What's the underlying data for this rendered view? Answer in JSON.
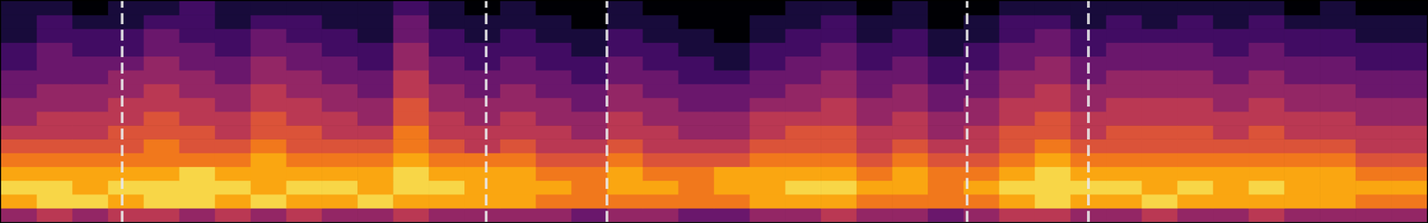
{
  "chart_data": {
    "type": "heatmap",
    "xlim": [
      0,
      40
    ],
    "ylim": [
      0,
      16
    ],
    "zlim": [
      0,
      1
    ],
    "tick_labels": false,
    "grid": false,
    "line_style": "dashed",
    "color": "#e8e8e8",
    "vlines": [
      3.4,
      13.6,
      17.0,
      27.1,
      30.5
    ],
    "cells": [
      [
        0.4,
        0.5,
        0.4,
        0.5,
        0.5,
        0.4,
        0.5,
        0.4,
        0.5,
        0.4,
        0.4,
        0.5,
        0.4,
        0.4,
        0.4,
        0.4,
        0.3,
        0.4,
        0.4,
        0.3,
        0.3,
        0.4,
        0.4,
        0.5,
        0.4,
        0.4,
        0.3,
        0.4,
        0.5,
        0.5,
        0.4,
        0.4,
        0.5,
        0.4,
        0.4,
        0.5,
        0.4,
        0.4,
        0.4,
        0.4
      ],
      [
        0.8,
        0.9,
        0.9,
        0.8,
        0.9,
        0.9,
        0.8,
        0.9,
        0.8,
        0.8,
        0.9,
        0.8,
        0.8,
        0.8,
        0.8,
        0.7,
        0.7,
        0.7,
        0.7,
        0.7,
        0.7,
        0.8,
        0.8,
        0.8,
        0.7,
        0.7,
        0.7,
        0.7,
        0.8,
        0.9,
        0.8,
        0.8,
        0.9,
        0.8,
        0.8,
        0.8,
        0.8,
        0.8,
        0.7,
        0.7
      ],
      [
        0.9,
        0.9,
        0.8,
        0.9,
        0.9,
        0.9,
        0.9,
        0.8,
        0.9,
        0.9,
        0.8,
        0.9,
        0.9,
        0.8,
        0.8,
        0.8,
        0.7,
        0.8,
        0.8,
        0.7,
        0.8,
        0.8,
        0.9,
        0.9,
        0.8,
        0.8,
        0.7,
        0.8,
        0.9,
        0.9,
        0.9,
        0.9,
        0.8,
        0.9,
        0.8,
        0.9,
        0.8,
        0.8,
        0.8,
        0.8
      ],
      [
        0.8,
        0.8,
        0.8,
        0.8,
        0.8,
        0.9,
        0.8,
        0.8,
        0.8,
        0.8,
        0.8,
        0.9,
        0.8,
        0.8,
        0.8,
        0.7,
        0.7,
        0.8,
        0.7,
        0.7,
        0.8,
        0.8,
        0.8,
        0.8,
        0.7,
        0.8,
        0.7,
        0.7,
        0.8,
        0.9,
        0.8,
        0.8,
        0.8,
        0.8,
        0.8,
        0.8,
        0.8,
        0.8,
        0.7,
        0.7
      ],
      [
        0.7,
        0.7,
        0.7,
        0.7,
        0.7,
        0.7,
        0.7,
        0.8,
        0.7,
        0.7,
        0.7,
        0.8,
        0.7,
        0.7,
        0.7,
        0.6,
        0.6,
        0.7,
        0.6,
        0.6,
        0.6,
        0.7,
        0.7,
        0.7,
        0.6,
        0.7,
        0.6,
        0.6,
        0.7,
        0.8,
        0.7,
        0.7,
        0.7,
        0.7,
        0.7,
        0.7,
        0.7,
        0.7,
        0.6,
        0.6
      ],
      [
        0.6,
        0.6,
        0.6,
        0.6,
        0.7,
        0.6,
        0.6,
        0.7,
        0.6,
        0.6,
        0.6,
        0.7,
        0.6,
        0.5,
        0.6,
        0.5,
        0.5,
        0.6,
        0.5,
        0.5,
        0.5,
        0.6,
        0.6,
        0.6,
        0.5,
        0.6,
        0.5,
        0.5,
        0.6,
        0.7,
        0.6,
        0.6,
        0.6,
        0.6,
        0.6,
        0.6,
        0.6,
        0.6,
        0.5,
        0.5
      ],
      [
        0.5,
        0.5,
        0.5,
        0.6,
        0.6,
        0.6,
        0.5,
        0.6,
        0.6,
        0.5,
        0.5,
        0.7,
        0.5,
        0.5,
        0.5,
        0.5,
        0.4,
        0.5,
        0.5,
        0.4,
        0.4,
        0.5,
        0.6,
        0.6,
        0.5,
        0.5,
        0.4,
        0.5,
        0.6,
        0.6,
        0.5,
        0.6,
        0.6,
        0.6,
        0.5,
        0.6,
        0.5,
        0.5,
        0.5,
        0.5
      ],
      [
        0.4,
        0.5,
        0.5,
        0.5,
        0.6,
        0.5,
        0.5,
        0.6,
        0.5,
        0.5,
        0.4,
        0.6,
        0.5,
        0.4,
        0.5,
        0.4,
        0.4,
        0.5,
        0.4,
        0.4,
        0.4,
        0.5,
        0.5,
        0.5,
        0.4,
        0.5,
        0.4,
        0.4,
        0.5,
        0.6,
        0.5,
        0.5,
        0.5,
        0.5,
        0.5,
        0.5,
        0.5,
        0.5,
        0.4,
        0.4
      ],
      [
        0.4,
        0.4,
        0.4,
        0.5,
        0.5,
        0.5,
        0.4,
        0.5,
        0.5,
        0.4,
        0.4,
        0.6,
        0.4,
        0.4,
        0.4,
        0.4,
        0.3,
        0.4,
        0.4,
        0.3,
        0.3,
        0.4,
        0.4,
        0.5,
        0.4,
        0.4,
        0.3,
        0.4,
        0.5,
        0.5,
        0.4,
        0.5,
        0.5,
        0.5,
        0.4,
        0.5,
        0.4,
        0.4,
        0.4,
        0.4
      ],
      [
        0.3,
        0.4,
        0.4,
        0.4,
        0.5,
        0.4,
        0.4,
        0.5,
        0.4,
        0.4,
        0.3,
        0.5,
        0.4,
        0.3,
        0.4,
        0.3,
        0.3,
        0.4,
        0.3,
        0.3,
        0.3,
        0.3,
        0.4,
        0.4,
        0.3,
        0.4,
        0.3,
        0.3,
        0.4,
        0.5,
        0.4,
        0.4,
        0.4,
        0.4,
        0.4,
        0.4,
        0.4,
        0.4,
        0.3,
        0.3
      ],
      [
        0.3,
        0.3,
        0.3,
        0.4,
        0.4,
        0.4,
        0.3,
        0.4,
        0.4,
        0.3,
        0.3,
        0.5,
        0.3,
        0.3,
        0.3,
        0.3,
        0.2,
        0.3,
        0.3,
        0.2,
        0.2,
        0.3,
        0.3,
        0.4,
        0.3,
        0.3,
        0.2,
        0.3,
        0.4,
        0.4,
        0.3,
        0.4,
        0.4,
        0.4,
        0.3,
        0.4,
        0.3,
        0.3,
        0.3,
        0.3
      ],
      [
        0.2,
        0.3,
        0.3,
        0.3,
        0.4,
        0.3,
        0.3,
        0.4,
        0.3,
        0.3,
        0.2,
        0.4,
        0.3,
        0.2,
        0.3,
        0.2,
        0.2,
        0.3,
        0.2,
        0.2,
        0.1,
        0.2,
        0.3,
        0.3,
        0.2,
        0.3,
        0.2,
        0.2,
        0.3,
        0.4,
        0.3,
        0.3,
        0.3,
        0.3,
        0.3,
        0.3,
        0.3,
        0.3,
        0.2,
        0.2
      ],
      [
        0.2,
        0.3,
        0.2,
        0.2,
        0.3,
        0.3,
        0.2,
        0.3,
        0.3,
        0.2,
        0.2,
        0.4,
        0.2,
        0.2,
        0.2,
        0.2,
        0.1,
        0.2,
        0.2,
        0.1,
        0.1,
        0.2,
        0.2,
        0.3,
        0.2,
        0.2,
        0.1,
        0.2,
        0.3,
        0.3,
        0.2,
        0.3,
        0.3,
        0.3,
        0.2,
        0.3,
        0.2,
        0.2,
        0.2,
        0.2
      ],
      [
        0.1,
        0.2,
        0.2,
        0.2,
        0.3,
        0.2,
        0.2,
        0.3,
        0.2,
        0.2,
        0.1,
        0.3,
        0.2,
        0.1,
        0.2,
        0.1,
        0.1,
        0.2,
        0.1,
        0.1,
        0.0,
        0.1,
        0.2,
        0.2,
        0.1,
        0.2,
        0.1,
        0.1,
        0.2,
        0.3,
        0.2,
        0.2,
        0.2,
        0.2,
        0.2,
        0.2,
        0.2,
        0.2,
        0.1,
        0.1
      ],
      [
        0.1,
        0.2,
        0.1,
        0.1,
        0.2,
        0.2,
        0.1,
        0.2,
        0.2,
        0.1,
        0.1,
        0.3,
        0.1,
        0.1,
        0.1,
        0.1,
        0.0,
        0.1,
        0.1,
        0.0,
        0.0,
        0.1,
        0.1,
        0.2,
        0.1,
        0.1,
        0.0,
        0.1,
        0.2,
        0.2,
        0.1,
        0.2,
        0.1,
        0.2,
        0.1,
        0.2,
        0.1,
        0.1,
        0.1,
        0.1
      ],
      [
        0.1,
        0.1,
        0.0,
        0.1,
        0.1,
        0.2,
        0.1,
        0.1,
        0.1,
        0.1,
        0.1,
        0.2,
        0.1,
        0.0,
        0.1,
        0.0,
        0.0,
        0.1,
        0.0,
        0.0,
        0.0,
        0.0,
        0.1,
        0.1,
        0.0,
        0.1,
        0.0,
        0.0,
        0.1,
        0.1,
        0.1,
        0.1,
        0.1,
        0.1,
        0.1,
        0.1,
        0.0,
        0.1,
        0.0,
        0.0
      ]
    ]
  }
}
